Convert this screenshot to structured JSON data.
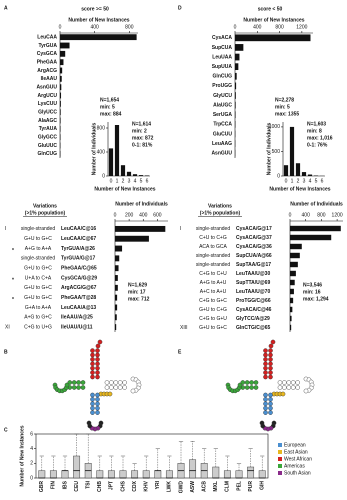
{
  "panel_labels": [
    "A",
    "B",
    "C",
    "D",
    "E"
  ],
  "chart_data": [
    {
      "type": "hbar",
      "title": "score >= 50",
      "xlabel": "Number of New Instances",
      "categories": [
        "LeuCAA",
        "TyrGUA",
        "CysGCA",
        "PheGAA",
        "ArgACG",
        "IleAAU",
        "AsnGUU",
        "ArgUCU",
        "LysCUU",
        "GlyUCC",
        "AlaAGC",
        "TyrAUA",
        "GlyGCC",
        "GluUUC",
        "GlnCUG"
      ],
      "values": [
        884,
        110,
        60,
        40,
        25,
        20,
        15,
        12,
        10,
        8,
        7,
        6,
        6,
        5,
        5
      ],
      "xlim": [
        0,
        900
      ],
      "xticks": [
        0,
        400,
        800
      ],
      "color": "#111111",
      "annotations": [
        "N=1,654",
        "min: 5",
        "max: 884"
      ]
    },
    {
      "type": "bar",
      "ylabel": "Number of Individuals",
      "xlabel": "Number of New Instances",
      "categories": [
        "0",
        "1",
        "2",
        "3",
        "4",
        "5",
        "6"
      ],
      "values": [
        460,
        850,
        180,
        70,
        30,
        15,
        9
      ],
      "ylim": [
        0,
        900
      ],
      "yticks": [
        0,
        400,
        800
      ],
      "color": "#111111",
      "annotations": [
        "N=1,614",
        "min: 2",
        "max: 872",
        "0-1: 81%"
      ]
    },
    {
      "type": "variations",
      "title": "Variations",
      "subtitle": "(>1% population)",
      "xlabel": "Number of Individuals",
      "numerals": [
        "I",
        null,
        null,
        null,
        null,
        null,
        null,
        null,
        null,
        null,
        "XI"
      ],
      "markers": [
        null,
        null,
        "*",
        null,
        null,
        "*",
        null,
        "*",
        null,
        null,
        null
      ],
      "changes": [
        "single-stranded",
        "G+U to G+C",
        "A+G to A+A",
        "single-stranded",
        "G+U to G+C",
        "U+A to C+A",
        "G+U to G+C",
        "G+U to G+C",
        "G+A to A+A",
        "A+G to G+C",
        "C+G to U+G"
      ],
      "categories": [
        "LeuCAA/C@16",
        "LeuCAA/C@67",
        "TyrGUA/A@26",
        "TyrGUA/G@17",
        "PheGAA/C@65",
        "CysGCA/G@29",
        "ArgACG/G@67",
        "PheGAA/T@28",
        "LeuCAA/A@13",
        "IleAAU/A@25",
        "IleUAU/U@11"
      ],
      "label_colors": [
        "#111111",
        "#111111",
        "#111111",
        "#999999",
        "#111111",
        "#999999",
        "#999999",
        "#111111",
        "#111111",
        "#111111",
        "#111111"
      ],
      "values": [
        712,
        480,
        100,
        60,
        50,
        40,
        40,
        30,
        30,
        25,
        17
      ],
      "xlim": [
        0,
        750
      ],
      "xticks": [
        0,
        200,
        400,
        600
      ],
      "color": "#111111",
      "annotations": [
        "N=1,629",
        "min: 17",
        "max: 712"
      ]
    },
    {
      "type": "hbar",
      "title": "score < 50",
      "xlabel": "Number of New Instances",
      "categories": [
        "CysACA",
        "SupCUA",
        "LeuUAA",
        "SupUUA",
        "GlnCUG",
        "ProUGG",
        "GlyUCU",
        "AlaUGC",
        "SerUGA",
        "TrpCCA",
        "GluCUU",
        "LeuAAG",
        "AsnGUU"
      ],
      "values": [
        1355,
        150,
        80,
        60,
        30,
        20,
        15,
        12,
        10,
        8,
        6,
        5,
        5
      ],
      "xlim": [
        0,
        1400
      ],
      "xticks": [
        0,
        400,
        800,
        1200
      ],
      "color": "#111111",
      "annotations": [
        "N=2,278",
        "min: 5",
        "max: 1355"
      ]
    },
    {
      "type": "bar",
      "ylabel": "Number of Individuals",
      "xlabel": "Number of New Instances",
      "categories": [
        "0",
        "1",
        "2",
        "3",
        "4",
        "5",
        "6"
      ],
      "values": [
        220,
        1000,
        260,
        80,
        30,
        10,
        3
      ],
      "ylim": [
        0,
        1100
      ],
      "yticks": [
        0,
        500,
        1000
      ],
      "color": "#111111",
      "annotations": [
        "N=1,603",
        "min: 8",
        "max: 1,016",
        "0-1: 76%"
      ]
    },
    {
      "type": "variations",
      "title": "Variations",
      "subtitle": "(>1% population)",
      "xlabel": "Number of Individuals",
      "numerals": [
        "I",
        null,
        null,
        null,
        null,
        null,
        null,
        null,
        null,
        null,
        null,
        "XIII"
      ],
      "markers": [
        null,
        null,
        null,
        null,
        null,
        null,
        null,
        null,
        null,
        null,
        null,
        null
      ],
      "changes": [
        "single-stranded",
        "C+U to C+G",
        "ACA to GCA",
        "single-stranded",
        "single-stranded",
        "C+G to C+U",
        "A+G to A+U",
        "A+C to A+U",
        "C+G to G+C",
        "G+U to C+G",
        "C+G to G+U",
        "G+U to G+C"
      ],
      "categories": [
        "CysACA/G@17",
        "CysACA/G@37",
        "CysACA/G@36",
        "SupCUA/A@66",
        "SupTAA/G@17",
        "LeuTAA/U@30",
        "SupTTA/U@69",
        "LeuTAA/U@70",
        "ProTGG/C@66",
        "CysACA/C@46",
        "GlyTCC/A@29",
        "GlnCTG/C@65"
      ],
      "label_colors": [
        "#111111",
        "#111111",
        "#999999",
        "#111111",
        "#111111",
        "#111111",
        "#999999",
        "#111111",
        "#999999",
        "#999999",
        "#999999",
        "#111111"
      ],
      "values": [
        1294,
        1050,
        300,
        250,
        200,
        150,
        120,
        100,
        80,
        60,
        40,
        30
      ],
      "xlim": [
        0,
        1350
      ],
      "xticks": [
        0,
        400,
        800,
        1200
      ],
      "color": "#111111",
      "annotations": [
        "N=3,546",
        "min: 16",
        "max: 1,294"
      ]
    },
    {
      "type": "box",
      "ylabel": "Number of New Instances",
      "ylim": [
        0,
        6
      ],
      "yticks": [
        0,
        2,
        4,
        6
      ],
      "groups": [
        {
          "name": "European",
          "color": "#4a8fd0"
        },
        {
          "name": "East Asian",
          "color": "#e8b820"
        },
        {
          "name": "West African",
          "color": "#d42020"
        },
        {
          "name": "Americas",
          "color": "#3aa63a"
        },
        {
          "name": "South Asian",
          "color": "#8a2a8a"
        }
      ],
      "categories": [
        "GBR",
        "FIN",
        "IBS",
        "CEU",
        "TSI",
        "CHB",
        "JPT",
        "CHS",
        "CDX",
        "KHV",
        "YRI",
        "LWK",
        "GWD",
        "ASW",
        "ACB",
        "MXL",
        "CLM",
        "PEL",
        "PUR",
        "GIH"
      ],
      "boxes": [
        {
          "group": 0,
          "min": 0,
          "q1": 0,
          "median": 0,
          "q3": 1,
          "max": 3
        },
        {
          "group": 0,
          "min": 0,
          "q1": 0,
          "median": 0,
          "q3": 1,
          "max": 3
        },
        {
          "group": 0,
          "min": 0,
          "q1": 0,
          "median": 1,
          "q3": 1,
          "max": 3
        },
        {
          "group": 0,
          "min": 0,
          "q1": 0,
          "median": 1,
          "q3": 3,
          "max": 6
        },
        {
          "group": 0,
          "min": 0,
          "q1": 0,
          "median": 1,
          "q3": 2,
          "max": 6
        },
        {
          "group": 1,
          "min": 0,
          "q1": 0,
          "median": 0,
          "q3": 1,
          "max": 3
        },
        {
          "group": 1,
          "min": 0,
          "q1": 0,
          "median": 0,
          "q3": 1,
          "max": 3
        },
        {
          "group": 1,
          "min": 0,
          "q1": 0,
          "median": 0,
          "q3": 1,
          "max": 3
        },
        {
          "group": 1,
          "min": 0,
          "q1": 0,
          "median": 0,
          "q3": 1,
          "max": 2
        },
        {
          "group": 1,
          "min": 0,
          "q1": 0,
          "median": 0,
          "q3": 1,
          "max": 3
        },
        {
          "group": 2,
          "min": 0,
          "q1": 0,
          "median": 1,
          "q3": 1,
          "max": 4
        },
        {
          "group": 2,
          "min": 0,
          "q1": 0,
          "median": 0,
          "q3": 1,
          "max": 3
        },
        {
          "group": 2,
          "min": 0,
          "q1": 0,
          "median": 1,
          "q3": 2,
          "max": 5
        },
        {
          "group": 3,
          "min": 0,
          "q1": 0,
          "median": 1,
          "q3": 2.5,
          "max": 5
        },
        {
          "group": 3,
          "min": 0,
          "q1": 0,
          "median": 1,
          "q3": 2,
          "max": 4
        },
        {
          "group": 3,
          "min": 0,
          "q1": 0,
          "median": 0,
          "q3": 1.5,
          "max": 4
        },
        {
          "group": 3,
          "min": 0,
          "q1": 0,
          "median": 0,
          "q3": 1,
          "max": 3
        },
        {
          "group": 3,
          "min": 0,
          "q1": 0,
          "median": 0,
          "q3": 1,
          "max": 2
        },
        {
          "group": 3,
          "min": 0,
          "q1": 0,
          "median": 1,
          "q3": 1.5,
          "max": 4
        },
        {
          "group": 4,
          "min": 0,
          "q1": 0,
          "median": 0,
          "q3": 1,
          "max": 3
        }
      ]
    }
  ]
}
